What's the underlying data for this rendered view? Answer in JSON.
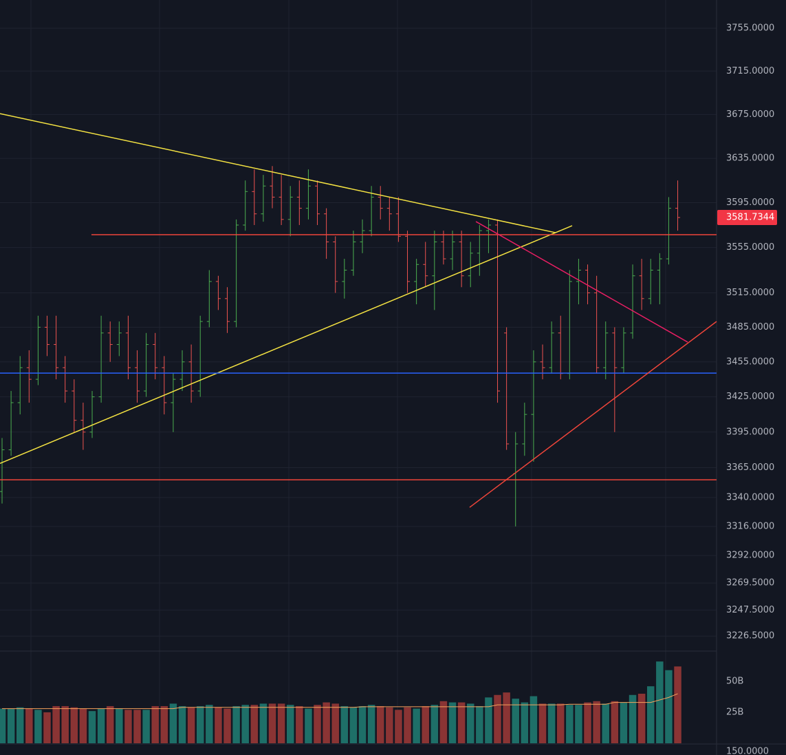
{
  "chart_data": {
    "type": "ohlc",
    "log_scale": true,
    "grid": true,
    "up_color": "#4caf50",
    "down_color": "#ef5350",
    "vol_up_color": "#1e6f68",
    "vol_down_color": "#8a3434",
    "ma_color": "#f7a35c",
    "xlim": [
      -0.23,
      79.31
    ],
    "ylim": [
      3215,
      3781.5
    ],
    "yticks": [
      {
        "value": 3755,
        "label": "3755.0000"
      },
      {
        "value": 3715,
        "label": "3715.0000"
      },
      {
        "value": 3675,
        "label": "3675.0000"
      },
      {
        "value": 3635,
        "label": "3635.0000"
      },
      {
        "value": 3595,
        "label": "3595.0000"
      },
      {
        "value": 3555,
        "label": "3555.0000"
      },
      {
        "value": 3515,
        "label": "3515.0000"
      },
      {
        "value": 3485,
        "label": "3485.0000"
      },
      {
        "value": 3455,
        "label": "3455.0000"
      },
      {
        "value": 3425,
        "label": "3425.0000"
      },
      {
        "value": 3395,
        "label": "3395.0000"
      },
      {
        "value": 3365,
        "label": "3365.0000"
      },
      {
        "value": 3340,
        "label": "3340.0000"
      },
      {
        "value": 3316,
        "label": "3316.0000"
      },
      {
        "value": 3292,
        "label": "3292.0000"
      },
      {
        "value": 3269.5,
        "label": "3269.5000"
      },
      {
        "value": 3247.5,
        "label": "3247.5000"
      },
      {
        "value": 3226.5,
        "label": "3226.5000"
      }
    ],
    "open": [
      3345,
      3380,
      3420,
      3450,
      3440,
      3485,
      3470,
      3450,
      3430,
      3405,
      3395,
      3425,
      3480,
      3470,
      3480,
      3450,
      3430,
      3470,
      3450,
      3420,
      3440,
      3455,
      3430,
      3490,
      3525,
      3510,
      3490,
      3575,
      3605,
      3585,
      3610,
      3600,
      3580,
      3600,
      3590,
      3610,
      3585,
      3560,
      3525,
      3535,
      3560,
      3570,
      3600,
      3590,
      3585,
      3565,
      3525,
      3540,
      3530,
      3560,
      3545,
      3560,
      3530,
      3550,
      3570,
      3575,
      3480,
      3360,
      3385,
      3410,
      3455,
      3450,
      3480,
      3445,
      3525,
      3535,
      3515,
      3450,
      3480,
      3450,
      3480,
      3530,
      3510,
      3535,
      3545,
      3590
    ],
    "high": [
      3390,
      3430,
      3460,
      3465,
      3495,
      3495,
      3495,
      3460,
      3440,
      3420,
      3430,
      3495,
      3490,
      3490,
      3495,
      3465,
      3480,
      3480,
      3460,
      3445,
      3465,
      3470,
      3495,
      3535,
      3530,
      3520,
      3580,
      3615,
      3625,
      3620,
      3628,
      3620,
      3610,
      3615,
      3625,
      3615,
      3590,
      3565,
      3545,
      3570,
      3580,
      3610,
      3610,
      3600,
      3600,
      3570,
      3545,
      3560,
      3570,
      3570,
      3570,
      3570,
      3560,
      3575,
      3580,
      3580,
      3485,
      3395,
      3420,
      3465,
      3470,
      3490,
      3495,
      3535,
      3545,
      3540,
      3530,
      3490,
      3485,
      3485,
      3540,
      3545,
      3545,
      3550,
      3600,
      3615
    ],
    "low": [
      3335,
      3375,
      3410,
      3420,
      3435,
      3460,
      3440,
      3420,
      3395,
      3380,
      3390,
      3420,
      3455,
      3460,
      3440,
      3420,
      3425,
      3440,
      3410,
      3395,
      3430,
      3420,
      3425,
      3485,
      3500,
      3480,
      3485,
      3570,
      3575,
      3578,
      3590,
      3575,
      3565,
      3575,
      3580,
      3575,
      3545,
      3515,
      3510,
      3530,
      3550,
      3565,
      3580,
      3570,
      3560,
      3515,
      3505,
      3520,
      3500,
      3540,
      3535,
      3520,
      3520,
      3530,
      3550,
      3420,
      3380,
      3316,
      3375,
      3370,
      3440,
      3445,
      3440,
      3440,
      3505,
      3505,
      3445,
      3440,
      3395,
      3445,
      3475,
      3500,
      3505,
      3505,
      3540,
      3570
    ],
    "close": [
      3380,
      3420,
      3450,
      3440,
      3485,
      3470,
      3450,
      3430,
      3405,
      3395,
      3425,
      3480,
      3470,
      3480,
      3450,
      3430,
      3470,
      3450,
      3420,
      3440,
      3455,
      3430,
      3490,
      3525,
      3510,
      3490,
      3575,
      3605,
      3585,
      3610,
      3600,
      3580,
      3600,
      3590,
      3610,
      3585,
      3560,
      3525,
      3535,
      3560,
      3570,
      3600,
      3590,
      3585,
      3565,
      3525,
      3540,
      3530,
      3560,
      3545,
      3560,
      3530,
      3550,
      3570,
      3575,
      3430,
      3385,
      3385,
      3410,
      3455,
      3450,
      3480,
      3445,
      3525,
      3535,
      3515,
      3450,
      3480,
      3450,
      3480,
      3530,
      3510,
      3535,
      3545,
      3590,
      3581.7344
    ],
    "drawings": [
      {
        "color": "#f5e342",
        "points": [
          [
            -0.23,
            3675.8
          ],
          [
            61.45,
            3568.2
          ]
        ]
      },
      {
        "color": "#f5e342",
        "points": [
          [
            -0.23,
            3368.6
          ],
          [
            63.28,
            3574.4
          ]
        ]
      },
      {
        "color": "#f0453a",
        "points": [
          [
            9.92,
            3566.4
          ],
          [
            79.31,
            3566.4
          ]
        ]
      },
      {
        "color": "#2962ff",
        "points": [
          [
            -0.23,
            3445.3
          ],
          [
            79.31,
            3445.3
          ]
        ]
      },
      {
        "color": "#f0453a",
        "points": [
          [
            -0.23,
            3354.8
          ],
          [
            79.31,
            3354.8
          ]
        ]
      },
      {
        "color": "#e91e63",
        "points": [
          [
            52.6,
            3578.1
          ],
          [
            76.1,
            3472.1
          ]
        ]
      },
      {
        "color": "#f0453a",
        "points": [
          [
            51.9,
            3331.8
          ],
          [
            79.31,
            3490.0
          ]
        ]
      }
    ],
    "vlim": [
      0,
      74.4
    ],
    "vticks": [
      {
        "value": 50,
        "label": "50B"
      },
      {
        "value": 25,
        "label": "25B"
      }
    ],
    "volume": [
      28,
      28,
      29,
      28,
      27,
      25,
      30,
      30,
      29,
      28,
      26,
      28,
      30,
      28,
      27,
      27,
      27,
      30,
      30,
      32,
      30,
      29,
      30,
      31,
      29,
      28,
      30,
      31,
      31,
      32,
      32,
      32,
      31,
      30,
      28,
      31,
      33,
      32,
      30,
      29,
      30,
      31,
      30,
      29,
      27,
      29,
      28,
      30,
      31,
      34,
      33,
      33,
      32,
      30,
      37,
      39,
      41,
      36,
      33,
      38,
      32,
      32,
      32,
      31,
      31,
      33,
      34,
      32,
      34,
      33,
      39,
      40,
      46,
      66,
      59,
      62
    ],
    "volume_ma": [
      28,
      28,
      28,
      28,
      28,
      28,
      28,
      28,
      28,
      28,
      28,
      28,
      28,
      28,
      28,
      28,
      28,
      28,
      28,
      28,
      29,
      29,
      29,
      29,
      29,
      29,
      29,
      29,
      29,
      29,
      29,
      29,
      29,
      29,
      29,
      29,
      29,
      29,
      29,
      29,
      29.5,
      29.5,
      29.5,
      29.5,
      29.5,
      29.5,
      29.5,
      29.5,
      29.5,
      29.5,
      29.5,
      29.5,
      29.5,
      29.5,
      29.5,
      31,
      31,
      31,
      31,
      31,
      31,
      31,
      31,
      31.5,
      31.5,
      31.5,
      31.5,
      31.5,
      33,
      33,
      33,
      33,
      33,
      35,
      37,
      40
    ],
    "bottom_label": "150.0000"
  }
}
